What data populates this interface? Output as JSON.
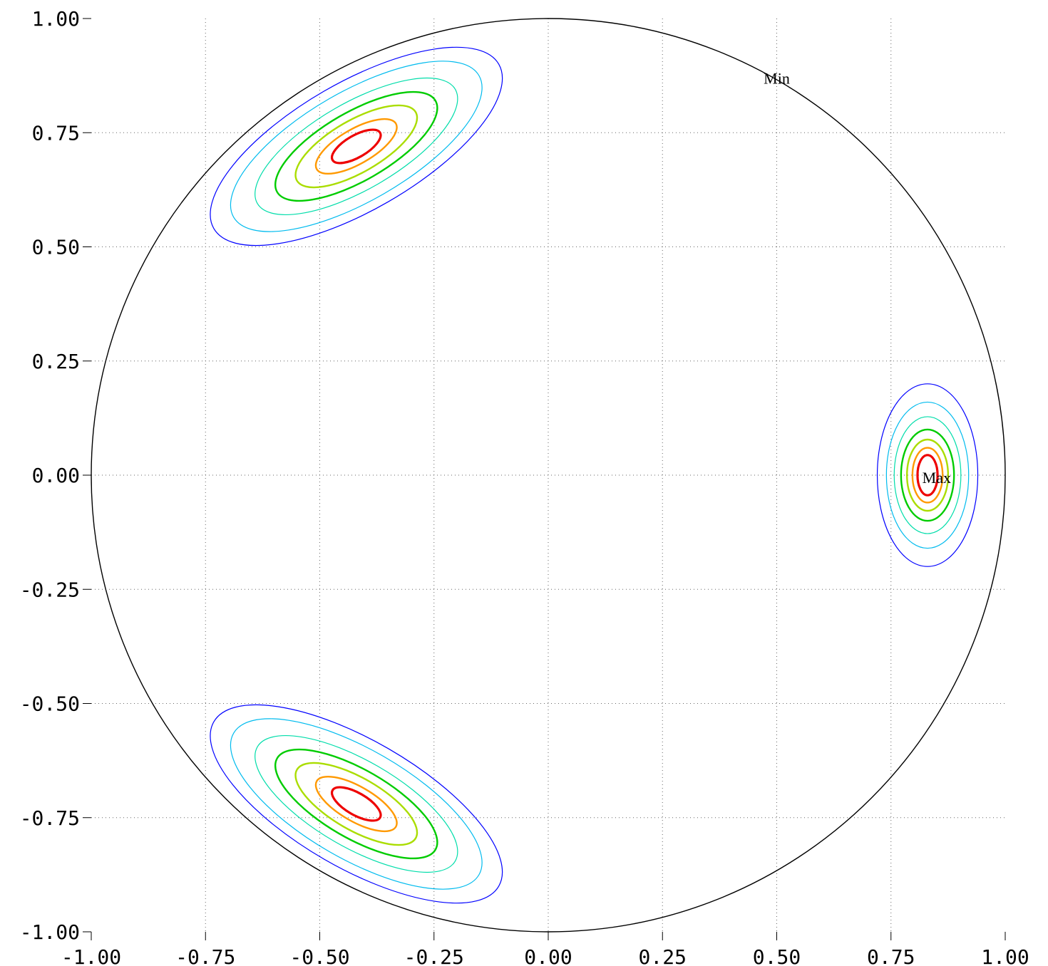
{
  "chart_data": {
    "type": "contour",
    "title": "",
    "xlabel": "",
    "ylabel": "",
    "xlim": [
      -1,
      1
    ],
    "ylim": [
      -1,
      1
    ],
    "xticks": [
      "-1.00",
      "-0.75",
      "-0.50",
      "-0.25",
      "0.00",
      "0.25",
      "0.50",
      "0.75",
      "1.00"
    ],
    "yticks": [
      "1.00",
      "0.75",
      "0.50",
      "0.25",
      "0.00",
      "-0.25",
      "-0.50",
      "-0.75",
      "-1.00"
    ],
    "grid": true,
    "projection_circle_radius": 1.0,
    "contour_colors": [
      "#0000ff",
      "#00bbee",
      "#00ddaa",
      "#00cc00",
      "#aadd00",
      "#ff9900",
      "#ee0000"
    ],
    "peaks": [
      {
        "center": [
          -0.42,
          0.72
        ],
        "rx": [
          0.36,
          0.31,
          0.25,
          0.2,
          0.15,
          0.1,
          0.06
        ],
        "ry": [
          0.14,
          0.12,
          0.095,
          0.075,
          0.057,
          0.038,
          0.024
        ],
        "angle_deg": 30
      },
      {
        "center": [
          0.83,
          0.0
        ],
        "rx": [
          0.11,
          0.09,
          0.073,
          0.058,
          0.045,
          0.033,
          0.022
        ],
        "ry": [
          0.2,
          0.16,
          0.128,
          0.1,
          0.078,
          0.06,
          0.044
        ],
        "angle_deg": 0
      },
      {
        "center": [
          -0.42,
          -0.72
        ],
        "rx": [
          0.36,
          0.31,
          0.25,
          0.2,
          0.15,
          0.1,
          0.06
        ],
        "ry": [
          0.14,
          0.12,
          0.095,
          0.075,
          0.057,
          0.038,
          0.024
        ],
        "angle_deg": -30
      }
    ],
    "annotations": [
      {
        "text": "Min",
        "x": 0.5,
        "y": 0.87
      },
      {
        "text": "Max",
        "x": 0.85,
        "y": -0.005
      }
    ]
  }
}
